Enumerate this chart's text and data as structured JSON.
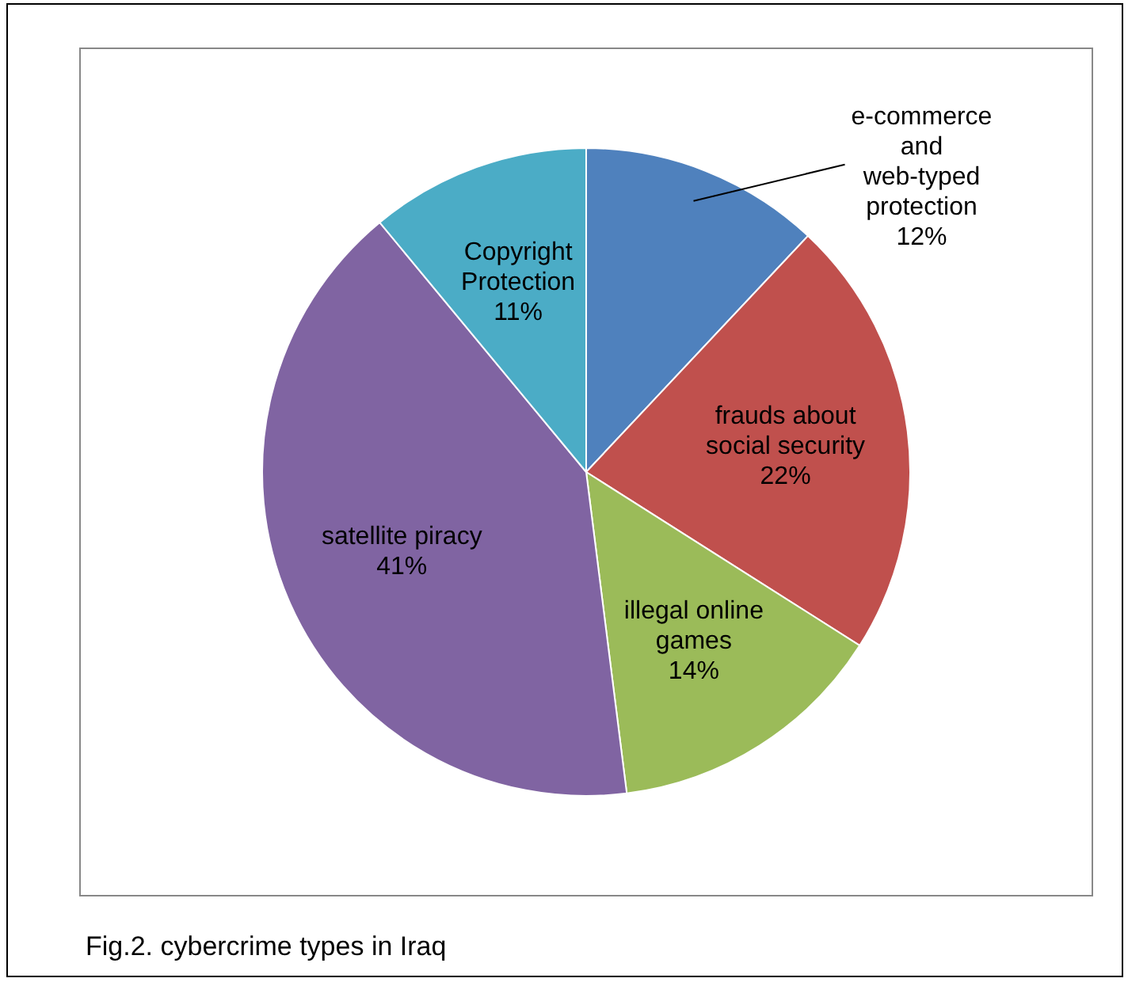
{
  "chart_data": {
    "type": "pie",
    "categories": [
      "e-commerce and web-typed protection",
      "frauds about social security",
      "illegal online games",
      "satellite piracy",
      "Copyright Protection"
    ],
    "values": [
      12,
      22,
      14,
      41,
      11
    ],
    "value_labels": [
      "12%",
      "22%",
      "14%",
      "41%",
      "11%"
    ],
    "colors": [
      "#4f81bd",
      "#c0504d",
      "#9bbb59",
      "#8064a2",
      "#4bacc6"
    ],
    "legend": false,
    "annotations": [
      "Fig.2. cybercrime types in Iraq"
    ]
  }
}
